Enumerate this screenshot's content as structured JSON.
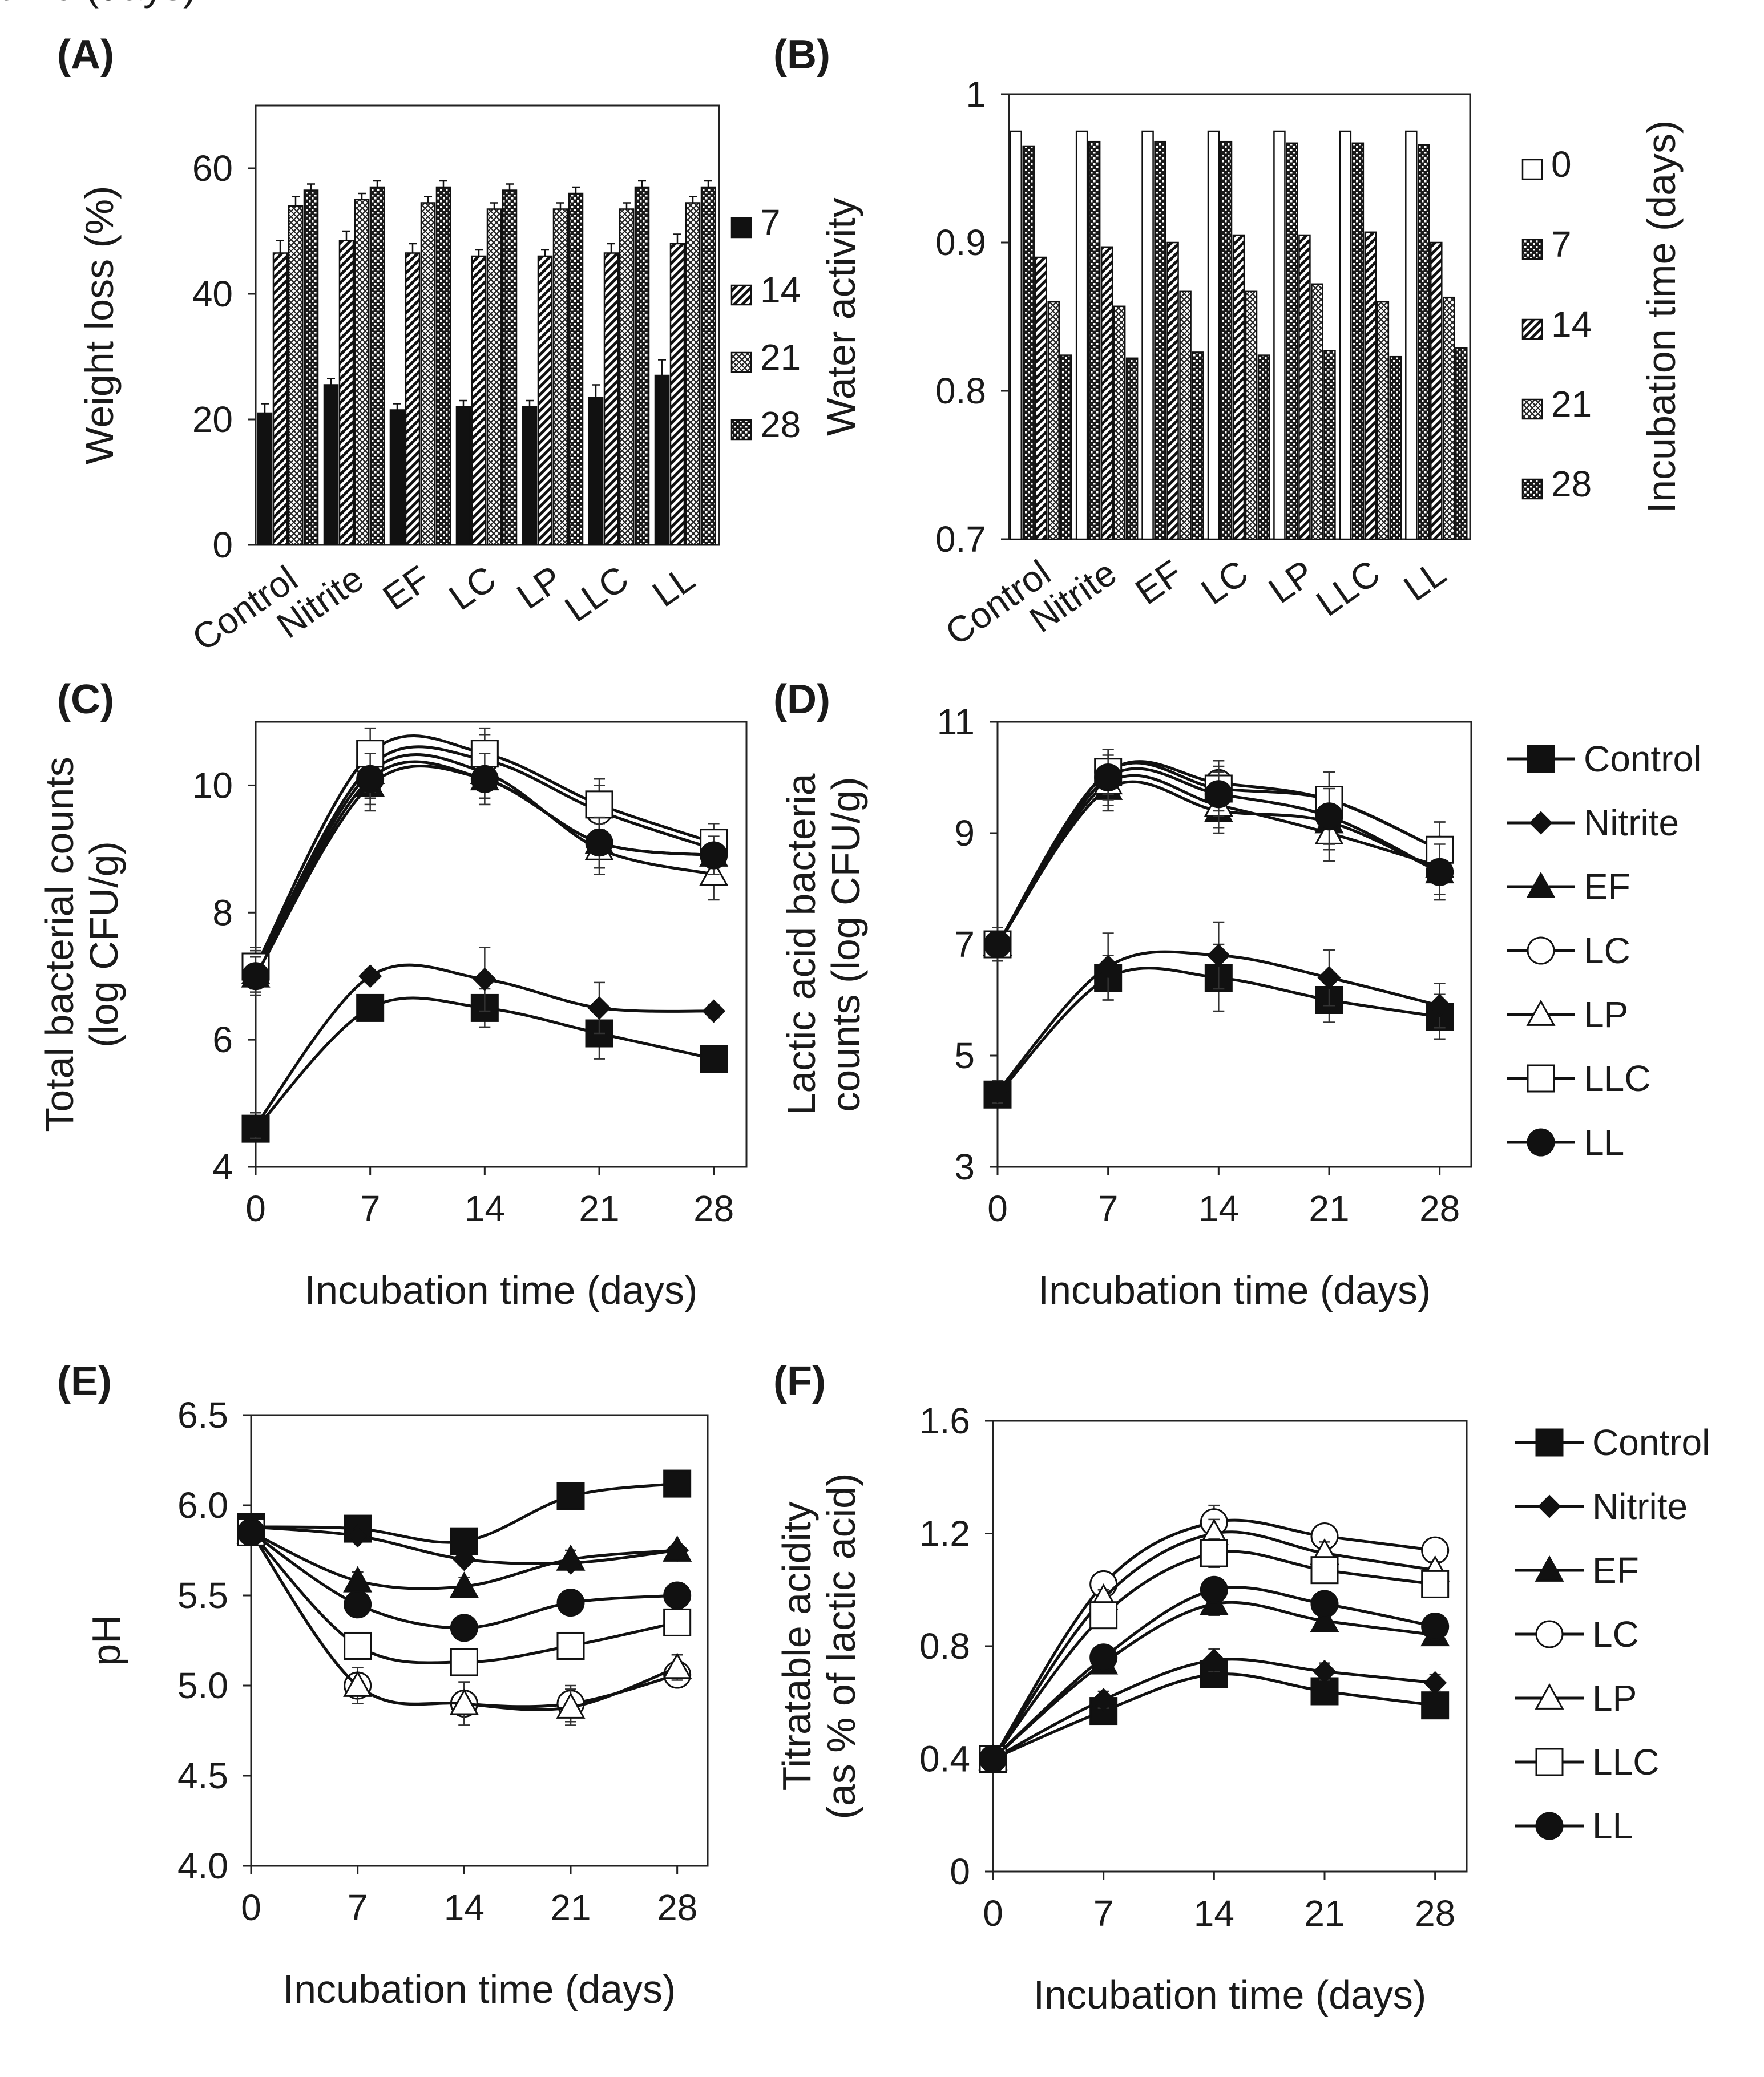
{
  "chart_data": [
    {
      "id": "A",
      "panel_label": "(A)",
      "type": "bar",
      "title": "",
      "xlabel": "",
      "ylabel": "Weight loss (%)",
      "ylim": [
        0,
        70
      ],
      "yticks": [
        0,
        20,
        40,
        60
      ],
      "categories": [
        "Control",
        "Nitrite",
        "EF",
        "LC",
        "LP",
        "LLC",
        "LL"
      ],
      "legend_title": "",
      "series": [
        {
          "name": "7",
          "pattern": "solid",
          "values": [
            21,
            25.5,
            21.5,
            22,
            22,
            23.5,
            27
          ],
          "errors": [
            1.5,
            1,
            1,
            1,
            1,
            2,
            2.5
          ]
        },
        {
          "name": "14",
          "pattern": "diag",
          "values": [
            46.5,
            48.5,
            46.5,
            46,
            46,
            46.5,
            48
          ],
          "errors": [
            2,
            1.5,
            1.5,
            1,
            1,
            1.5,
            1.5
          ]
        },
        {
          "name": "21",
          "pattern": "cross",
          "values": [
            54,
            55,
            54.5,
            53.5,
            53.5,
            53.5,
            54.5
          ],
          "errors": [
            1.5,
            1,
            1,
            1,
            1,
            1,
            1
          ]
        },
        {
          "name": "28",
          "pattern": "dots",
          "values": [
            56.5,
            57,
            57,
            56.5,
            56,
            57,
            57
          ],
          "errors": [
            1,
            1,
            1,
            1,
            1,
            1,
            1
          ]
        }
      ]
    },
    {
      "id": "B",
      "panel_label": "(B)",
      "type": "bar",
      "title": "",
      "xlabel": "",
      "ylabel": "Water activity",
      "ylim": [
        0.7,
        1.0
      ],
      "yticks": [
        0.7,
        0.8,
        0.9,
        1
      ],
      "categories": [
        "Control",
        "Nitrite",
        "EF",
        "LC",
        "LP",
        "LLC",
        "LL"
      ],
      "legend_title": "Incubation time (days)",
      "series": [
        {
          "name": "0",
          "pattern": "white",
          "values": [
            0.975,
            0.975,
            0.975,
            0.975,
            0.975,
            0.975,
            0.975
          ],
          "errors": [
            0,
            0,
            0,
            0,
            0,
            0,
            0
          ]
        },
        {
          "name": "7",
          "pattern": "dots",
          "values": [
            0.965,
            0.968,
            0.968,
            0.968,
            0.967,
            0.967,
            0.966
          ],
          "errors": [
            0,
            0,
            0,
            0,
            0,
            0,
            0
          ]
        },
        {
          "name": "14",
          "pattern": "diag",
          "values": [
            0.89,
            0.897,
            0.9,
            0.905,
            0.905,
            0.907,
            0.9
          ],
          "errors": [
            0,
            0,
            0,
            0,
            0,
            0,
            0
          ]
        },
        {
          "name": "21",
          "pattern": "cross",
          "values": [
            0.86,
            0.857,
            0.867,
            0.867,
            0.872,
            0.86,
            0.863
          ],
          "errors": [
            0,
            0,
            0,
            0,
            0,
            0,
            0
          ]
        },
        {
          "name": "28",
          "pattern": "dots",
          "values": [
            0.824,
            0.822,
            0.826,
            0.824,
            0.827,
            0.823,
            0.829
          ],
          "errors": [
            0,
            0,
            0,
            0,
            0,
            0,
            0
          ]
        }
      ]
    },
    {
      "id": "C",
      "panel_label": "(C)",
      "type": "line",
      "title": "",
      "xlabel": "Incubation time (days)",
      "ylabel": "Total bacterial counts (log CFU/g)",
      "ylabel_lines": [
        "Total bacterial counts",
        "(log CFU/g)"
      ],
      "x": [
        0,
        7,
        14,
        21,
        28
      ],
      "xlim": [
        0,
        30
      ],
      "xticks": [
        0,
        7,
        14,
        21,
        28
      ],
      "ylim": [
        4,
        11
      ],
      "yticks": [
        4,
        6,
        8,
        10
      ],
      "legend": "right",
      "series": [
        {
          "name": "Control",
          "marker": "square-filled",
          "values": [
            4.6,
            6.5,
            6.5,
            6.1,
            5.7
          ],
          "errors": [
            0.2,
            0.2,
            0.3,
            0.4,
            0.1
          ]
        },
        {
          "name": "Nitrite",
          "marker": "diamond-filled",
          "values": [
            4.65,
            7.0,
            6.95,
            6.5,
            6.45
          ],
          "errors": [
            0.2,
            0.1,
            0.5,
            0.4,
            0.1
          ]
        },
        {
          "name": "EF",
          "marker": "triangle-filled",
          "values": [
            7.0,
            10.0,
            10.1,
            9.1,
            8.9
          ],
          "errors": [
            0.3,
            0.4,
            0.4,
            0.4,
            0.3
          ]
        },
        {
          "name": "LC",
          "marker": "circle-open",
          "values": [
            7.1,
            10.3,
            10.4,
            9.6,
            9.0
          ],
          "errors": [
            0.3,
            0.4,
            0.4,
            0.4,
            0.3
          ]
        },
        {
          "name": "LP",
          "marker": "triangle-open",
          "values": [
            7.05,
            10.2,
            10.2,
            9.0,
            8.6
          ],
          "errors": [
            0.3,
            0.4,
            0.4,
            0.4,
            0.4
          ]
        },
        {
          "name": "LLC",
          "marker": "square-open",
          "values": [
            7.15,
            10.5,
            10.5,
            9.7,
            9.1
          ],
          "errors": [
            0.3,
            0.4,
            0.4,
            0.4,
            0.3
          ]
        },
        {
          "name": "LL",
          "marker": "circle-filled",
          "values": [
            7.0,
            10.1,
            10.1,
            9.1,
            8.9
          ],
          "errors": [
            0.3,
            0.4,
            0.4,
            0.4,
            0.3
          ]
        }
      ]
    },
    {
      "id": "D",
      "panel_label": "(D)",
      "type": "line",
      "title": "",
      "xlabel": "Incubation time (days)",
      "ylabel": "Lactic acid bacteria counts (log CFU/g)",
      "ylabel_lines": [
        "Lactic acid bacteria",
        "counts  (log CFU/g)"
      ],
      "x": [
        0,
        7,
        14,
        21,
        28
      ],
      "xlim": [
        0,
        30
      ],
      "xticks": [
        0,
        7,
        14,
        21,
        28
      ],
      "ylim": [
        3,
        11
      ],
      "yticks": [
        3,
        5,
        7,
        9,
        11
      ],
      "legend": "right",
      "series": [
        {
          "name": "Control",
          "marker": "square-filled",
          "values": [
            4.3,
            6.4,
            6.4,
            6.0,
            5.7
          ],
          "errors": [
            0.2,
            0.4,
            0.6,
            0.4,
            0.4
          ]
        },
        {
          "name": "Nitrite",
          "marker": "diamond-filled",
          "values": [
            4.35,
            6.6,
            6.8,
            6.4,
            5.9
          ],
          "errors": [
            0.2,
            0.6,
            0.6,
            0.5,
            0.4
          ]
        },
        {
          "name": "EF",
          "marker": "triangle-filled",
          "values": [
            7.0,
            9.8,
            9.4,
            9.2,
            8.3
          ],
          "errors": [
            0.3,
            0.4,
            0.4,
            0.5,
            0.5
          ]
        },
        {
          "name": "LC",
          "marker": "circle-open",
          "values": [
            7.0,
            10.1,
            9.9,
            9.6,
            8.7
          ],
          "errors": [
            0.3,
            0.4,
            0.4,
            0.5,
            0.5
          ]
        },
        {
          "name": "LP",
          "marker": "triangle-open",
          "values": [
            7.0,
            9.9,
            9.5,
            9.0,
            8.4
          ],
          "errors": [
            0.3,
            0.4,
            0.4,
            0.5,
            0.5
          ]
        },
        {
          "name": "LLC",
          "marker": "square-open",
          "values": [
            7.0,
            10.1,
            9.8,
            9.6,
            8.7
          ],
          "errors": [
            0.3,
            0.4,
            0.4,
            0.5,
            0.5
          ]
        },
        {
          "name": "LL",
          "marker": "circle-filled",
          "values": [
            7.0,
            10.0,
            9.7,
            9.3,
            8.3
          ],
          "errors": [
            0.3,
            0.4,
            0.4,
            0.5,
            0.5
          ]
        }
      ]
    },
    {
      "id": "E",
      "panel_label": "(E)",
      "type": "line",
      "title": "",
      "xlabel": "Incubation time (days)",
      "ylabel": "pH",
      "ylabel_lines": [
        "pH"
      ],
      "x": [
        0,
        7,
        14,
        21,
        28
      ],
      "xlim": [
        0,
        30
      ],
      "xticks": [
        0,
        7,
        14,
        21,
        28
      ],
      "ylim": [
        4.0,
        6.5
      ],
      "yticks": [
        "4.0",
        "4.5",
        "5.0",
        "5.5",
        "6.0",
        "6.5"
      ],
      "legend": "none",
      "series": [
        {
          "name": "Control",
          "marker": "square-filled",
          "values": [
            5.88,
            5.87,
            5.8,
            6.05,
            6.12
          ],
          "errors": [
            0.03,
            0.03,
            0.03,
            0.03,
            0.03
          ]
        },
        {
          "name": "Nitrite",
          "marker": "diamond-filled",
          "values": [
            5.88,
            5.83,
            5.7,
            5.68,
            5.75
          ],
          "errors": [
            0.03,
            0.03,
            0.03,
            0.03,
            0.03
          ]
        },
        {
          "name": "EF",
          "marker": "triangle-filled",
          "values": [
            5.85,
            5.58,
            5.55,
            5.7,
            5.75
          ],
          "errors": [
            0.03,
            0.05,
            0.05,
            0.05,
            0.03
          ]
        },
        {
          "name": "LC",
          "marker": "circle-open",
          "values": [
            5.85,
            5.0,
            4.9,
            4.9,
            5.06
          ],
          "errors": [
            0.03,
            0.1,
            0.12,
            0.1,
            0.07
          ]
        },
        {
          "name": "LP",
          "marker": "triangle-open",
          "values": [
            5.85,
            5.0,
            4.9,
            4.88,
            5.1
          ],
          "errors": [
            0.03,
            0.1,
            0.12,
            0.1,
            0.07
          ]
        },
        {
          "name": "LLC",
          "marker": "square-open",
          "values": [
            5.85,
            5.22,
            5.13,
            5.22,
            5.35
          ],
          "errors": [
            0.03,
            0.05,
            0.05,
            0.05,
            0.05
          ]
        },
        {
          "name": "LL",
          "marker": "circle-filled",
          "values": [
            5.85,
            5.45,
            5.32,
            5.46,
            5.5
          ],
          "errors": [
            0.03,
            0.05,
            0.05,
            0.05,
            0.05
          ]
        }
      ]
    },
    {
      "id": "F",
      "panel_label": "(F)",
      "type": "line",
      "title": "",
      "xlabel": "Incubation time (days)",
      "ylabel": "Titratable acidity (as % of lactic acid)",
      "ylabel_lines": [
        "Titratable acidity",
        "(as % of lactic acid)"
      ],
      "x": [
        0,
        7,
        14,
        21,
        28
      ],
      "xlim": [
        0,
        30
      ],
      "xticks": [
        0,
        7,
        14,
        21,
        28
      ],
      "ylim": [
        0,
        1.6
      ],
      "yticks": [
        "0",
        "0.4",
        "0.8",
        "1.2",
        "1.6"
      ],
      "legend": "right",
      "series": [
        {
          "name": "Control",
          "marker": "square-filled",
          "values": [
            0.4,
            0.57,
            0.7,
            0.64,
            0.59
          ],
          "errors": [
            0.02,
            0.03,
            0.03,
            0.03,
            0.03
          ]
        },
        {
          "name": "Nitrite",
          "marker": "diamond-filled",
          "values": [
            0.4,
            0.61,
            0.75,
            0.71,
            0.67
          ],
          "errors": [
            0.02,
            0.03,
            0.04,
            0.03,
            0.03
          ]
        },
        {
          "name": "EF",
          "marker": "triangle-filled",
          "values": [
            0.4,
            0.74,
            0.95,
            0.89,
            0.84
          ],
          "errors": [
            0.02,
            0.03,
            0.04,
            0.03,
            0.03
          ]
        },
        {
          "name": "LC",
          "marker": "circle-open",
          "values": [
            0.4,
            1.02,
            1.24,
            1.19,
            1.14
          ],
          "errors": [
            0.02,
            0.03,
            0.06,
            0.04,
            0.03
          ]
        },
        {
          "name": "LP",
          "marker": "triangle-open",
          "values": [
            0.4,
            0.97,
            1.2,
            1.13,
            1.07
          ],
          "errors": [
            0.02,
            0.03,
            0.05,
            0.04,
            0.03
          ]
        },
        {
          "name": "LLC",
          "marker": "square-open",
          "values": [
            0.4,
            0.91,
            1.13,
            1.07,
            1.02
          ],
          "errors": [
            0.02,
            0.03,
            0.05,
            0.04,
            0.03
          ]
        },
        {
          "name": "LL",
          "marker": "circle-filled",
          "values": [
            0.4,
            0.76,
            1.0,
            0.95,
            0.87
          ],
          "errors": [
            0.02,
            0.03,
            0.04,
            0.03,
            0.03
          ]
        }
      ]
    }
  ]
}
